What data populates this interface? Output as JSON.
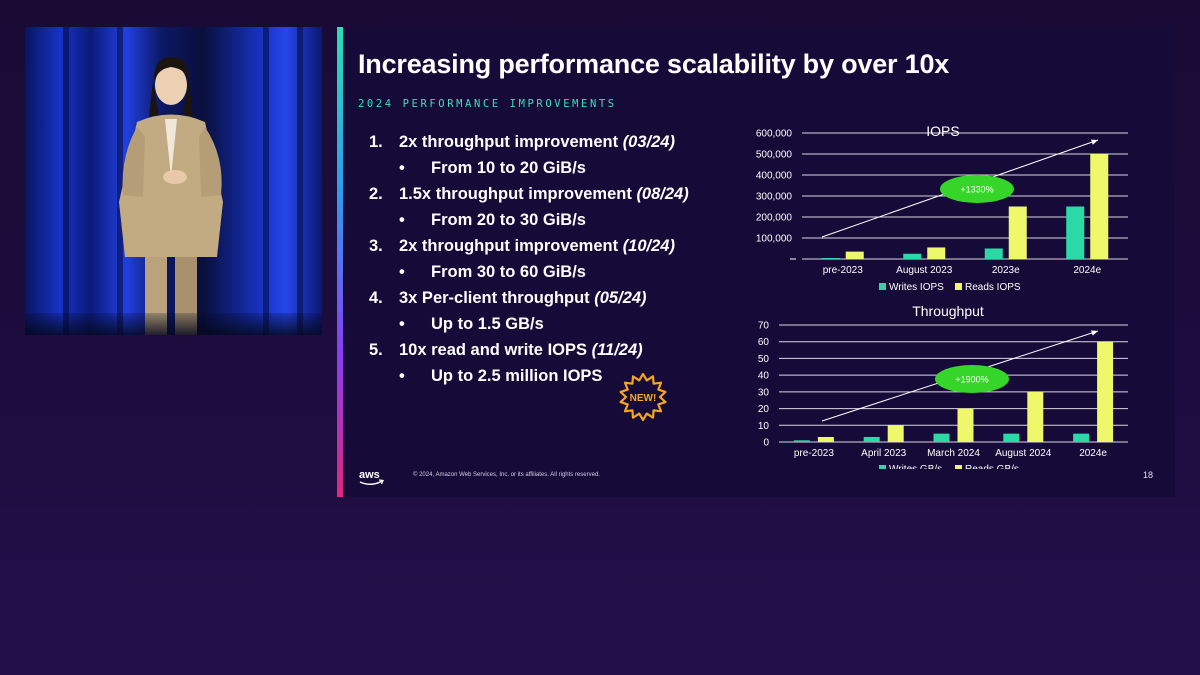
{
  "slide": {
    "title": "Increasing performance scalability by over 10x",
    "subtitle": "2024 PERFORMANCE IMPROVEMENTS",
    "items": [
      {
        "num": "1.",
        "text": "2x throughput improvement ",
        "date": "(03/24)",
        "sub": "From 10 to 20 GiB/s"
      },
      {
        "num": "2.",
        "text": "1.5x throughput improvement ",
        "date": "(08/24)",
        "sub": "From 20 to 30 GiB/s"
      },
      {
        "num": "3.",
        "text": "2x throughput improvement ",
        "date": "(10/24)",
        "sub": "From 30 to 60 GiB/s"
      },
      {
        "num": "4.",
        "text": "3x Per-client throughput ",
        "date": "(05/24)",
        "sub": "Up to 1.5 GB/s"
      },
      {
        "num": "5.",
        "text": "10x read and write IOPS ",
        "date": "(11/24)",
        "sub": "Up to 2.5 million IOPS"
      }
    ],
    "bullet": "•",
    "badge": "NEW!",
    "logo_text": "aws",
    "copyright": "© 2024, Amazon Web Services, Inc. or its affiliates. All rights reserved.",
    "page_number": "18"
  },
  "colors": {
    "writes": "#2bd9a6",
    "reads": "#eef86a",
    "callout": "#35d629",
    "gridline": "#d8d8e0",
    "badge": "#f7a51c"
  },
  "chart_data": [
    {
      "type": "bar",
      "title": "IOPS",
      "categories": [
        "pre-2023",
        "August 2023",
        "2023e",
        "2024e"
      ],
      "series": [
        {
          "name": "Writes IOPS",
          "values": [
            2000,
            25000,
            50000,
            250000
          ]
        },
        {
          "name": "Reads IOPS",
          "values": [
            35000,
            55000,
            250000,
            500000
          ]
        }
      ],
      "ylim": [
        0,
        600000
      ],
      "yticks": [
        "",
        "100,000",
        "200,000",
        "300,000",
        "400,000",
        "500,000",
        "600,000"
      ],
      "annotation": "+1330%",
      "grid": true,
      "legend": "bottom"
    },
    {
      "type": "bar",
      "title": "Throughput",
      "categories": [
        "pre-2023",
        "April 2023",
        "March 2024",
        "August 2024",
        "2024e"
      ],
      "series": [
        {
          "name": "Writes GB/s",
          "values": [
            1,
            3,
            5,
            5,
            5
          ]
        },
        {
          "name": "Reads GB/s",
          "values": [
            3,
            10,
            20,
            30,
            60
          ]
        }
      ],
      "ylim": [
        0,
        70
      ],
      "yticks": [
        "0",
        "10",
        "20",
        "30",
        "40",
        "50",
        "60",
        "70"
      ],
      "annotation": "+1900%",
      "grid": true,
      "legend": "bottom"
    }
  ]
}
